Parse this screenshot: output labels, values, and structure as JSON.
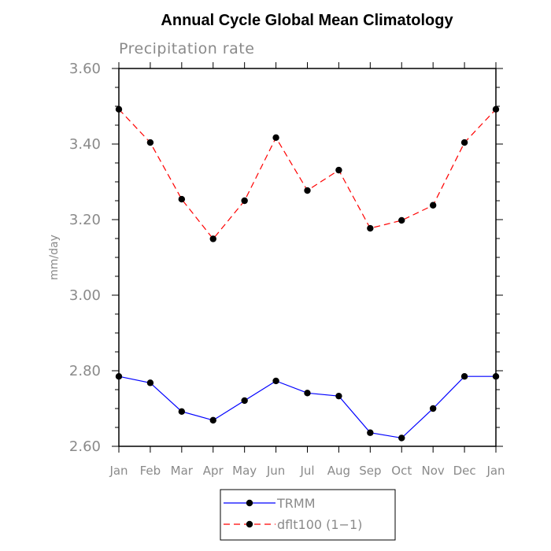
{
  "chart_data": {
    "type": "line",
    "title": "Annual Cycle Global Mean Climatology",
    "subtitle": "Precipitation rate",
    "xlabel": "",
    "ylabel": "mm/day",
    "categories": [
      "Jan",
      "Feb",
      "Mar",
      "Apr",
      "May",
      "Jun",
      "Jul",
      "Aug",
      "Sep",
      "Oct",
      "Nov",
      "Dec",
      "Jan"
    ],
    "ylim": [
      2.6,
      3.6
    ],
    "yticks": [
      "2.60",
      "2.80",
      "3.00",
      "3.20",
      "3.40",
      "3.60"
    ],
    "grid": false,
    "legend_position": "bottom-center",
    "series": [
      {
        "name": "TRMM",
        "color": "#0000ff",
        "dash": "solid",
        "marker": "filled-circle",
        "values": [
          2.785,
          2.768,
          2.692,
          2.669,
          2.721,
          2.773,
          2.741,
          2.733,
          2.636,
          2.622,
          2.7,
          2.785,
          2.785
        ]
      },
      {
        "name": "dflt100 (1−1)",
        "color": "#ff0000",
        "dash": "dashed",
        "marker": "filled-circle",
        "values": [
          3.492,
          3.404,
          3.254,
          3.149,
          3.25,
          3.417,
          3.277,
          3.331,
          3.177,
          3.198,
          3.238,
          3.404,
          3.492
        ]
      }
    ]
  }
}
